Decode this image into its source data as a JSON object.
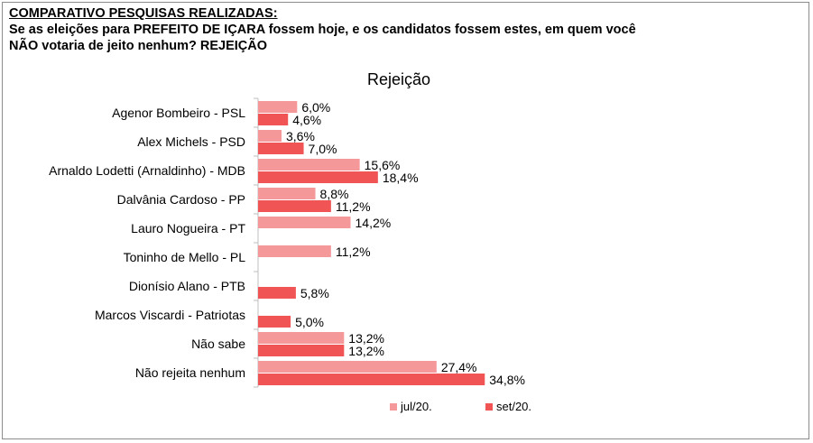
{
  "header": {
    "heading": "COMPARATIVO PESQUISAS REALIZADAS:",
    "question_line1": "Se as eleições para PREFEITO DE IÇARA fossem hoje, e os candidatos fossem estes, em quem você",
    "question_line2": "NÃO votaria de jeito nenhum? REJEIÇÃO"
  },
  "colors": {
    "jul": "#f4989a",
    "set": "#f05454",
    "axis": "#bfbfbf",
    "border": "#8c8c8c"
  },
  "chart_data": {
    "type": "bar",
    "orientation": "horizontal",
    "title": "Rejeição",
    "categories": [
      "Agenor Bombeiro - PSL",
      "Alex Michels - PSD",
      "Arnaldo Lodetti (Arnaldinho) - MDB",
      "Dalvânia Cardoso - PP",
      "Lauro Nogueira - PT",
      "Toninho de Mello - PL",
      "Dionísio Alano - PTB",
      "Marcos Viscardi - Patriotas",
      "Não sabe",
      "Não rejeita nenhum"
    ],
    "series": [
      {
        "name": "jul/20.",
        "values": [
          6.0,
          3.6,
          15.6,
          8.8,
          14.2,
          11.2,
          null,
          null,
          13.2,
          27.4
        ],
        "labels": [
          "6,0%",
          "3,6%",
          "15,6%",
          "8,8%",
          "14,2%",
          "11,2%",
          null,
          null,
          "13,2%",
          "27,4%"
        ]
      },
      {
        "name": "set/20.",
        "values": [
          4.6,
          7.0,
          18.4,
          11.2,
          null,
          null,
          5.8,
          5.0,
          13.2,
          34.8
        ],
        "labels": [
          "4,6%",
          "7,0%",
          "18,4%",
          "11,2%",
          null,
          null,
          "5,8%",
          "5,0%",
          "13,2%",
          "34,8%"
        ]
      }
    ],
    "legend_position": "bottom",
    "grid": false
  }
}
